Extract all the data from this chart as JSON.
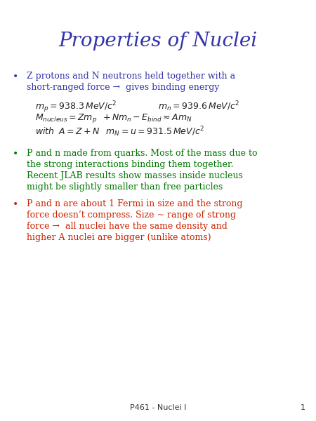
{
  "title": "Properties of Nuclei",
  "title_color": "#3333AA",
  "title_fontsize": 20,
  "background_color": "#FFFFFF",
  "bullet_color_1": "#3333AA",
  "bullet_color_2": "#007700",
  "bullet_color_3": "#CC2200",
  "text_color_blue": "#3333AA",
  "text_color_green": "#007700",
  "text_color_red": "#CC2200",
  "footer_text": "P461 - Nuclei I",
  "footer_number": "1",
  "bullet1_line1": "Z protons and N neutrons held together with a",
  "bullet1_line2": "short-ranged force →  gives binding energy",
  "bullet2_line1": "P and n made from quarks. Most of the mass due to",
  "bullet2_line2": "the strong interactions binding them together.",
  "bullet2_line3": "Recent JLAB results show masses inside nucleus",
  "bullet2_line4": "might be slightly smaller than free particles",
  "bullet3_line1": "P and n are about 1 Fermi in size and the strong",
  "bullet3_line2": "force doesn’t compress. Size ~ range of strong",
  "bullet3_line3": "force →  all nuclei have the same density and",
  "bullet3_line4": "higher A nuclei are bigger (unlike atoms)"
}
